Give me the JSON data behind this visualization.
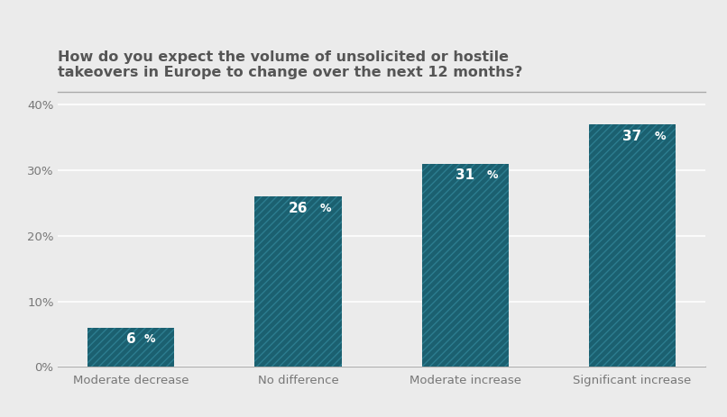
{
  "title_line1": "How do you expect the volume of unsolicited or hostile",
  "title_line2": "takeovers in Europe to change over the next 12 months?",
  "categories": [
    "Moderate decrease",
    "No difference",
    "Moderate increase",
    "Significant increase"
  ],
  "values": [
    6,
    26,
    31,
    37
  ],
  "bar_color": "#1b6070",
  "hatch_pattern": "////",
  "hatch_color": "#2d7d90",
  "label_color": "#ffffff",
  "label_fontsize": 11,
  "label_pct_fontsize": 9,
  "title_fontsize": 11.5,
  "title_color": "#555555",
  "tick_label_fontsize": 9.5,
  "ytick_labels": [
    "0%",
    "10%",
    "20%",
    "30%",
    "40%"
  ],
  "ytick_values": [
    0,
    10,
    20,
    30,
    40
  ],
  "ylim": [
    0,
    42
  ],
  "background_color": "#ebebeb",
  "plot_bg_color": "#ebebeb",
  "grid_color": "#ffffff",
  "axis_line_color": "#aaaaaa",
  "bar_width": 0.52,
  "top_line_color": "#aaaaaa"
}
